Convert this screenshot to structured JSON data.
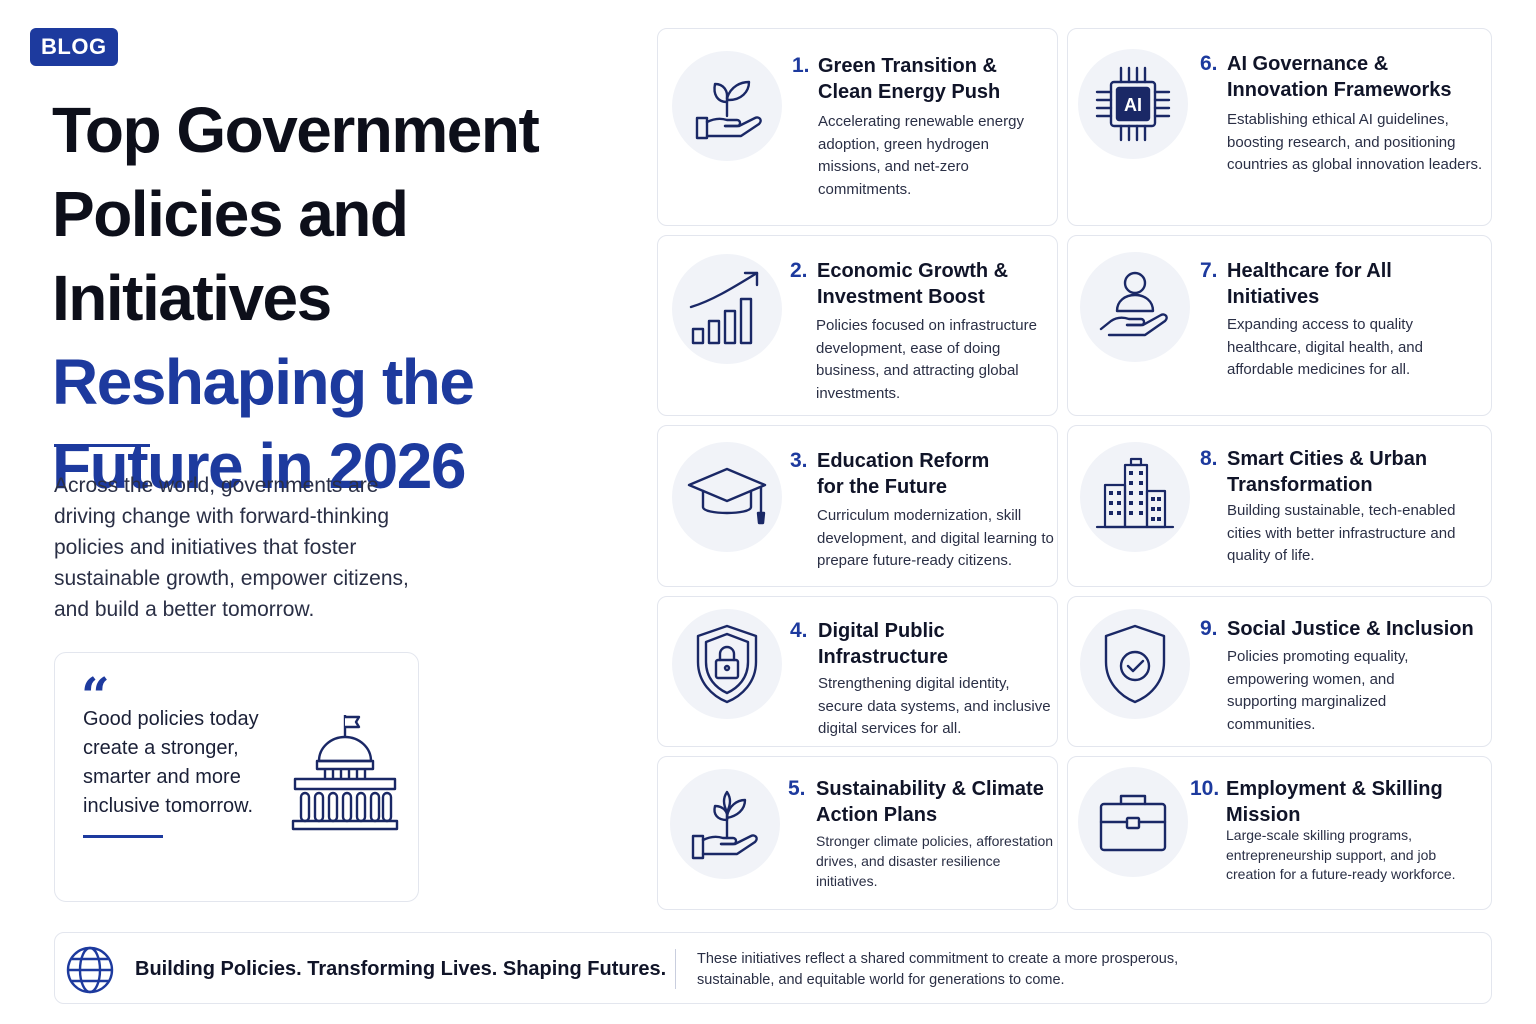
{
  "badge": "BLOG",
  "title": {
    "line1": "Top Government",
    "line2": "Policies and Initiatives",
    "line3": "Reshaping the",
    "line4": "Future in 2026"
  },
  "intro": "Across the world, governments are driving change with forward-thinking policies and initiatives that foster sustainable growth, empower citizens, and build a better tomorrow.",
  "quote": {
    "mark": "“",
    "text": "Good policies today create a stronger, smarter and more inclusive tomorrow.",
    "icon": "capitol-building-icon"
  },
  "policies": [
    {
      "number": "1.",
      "title": "Green Transition & Clean Energy Push",
      "description": "Accelerating renewable energy adoption, green hydrogen missions, and net-zero commitments.",
      "icon": "hand-sprout-icon"
    },
    {
      "number": "2.",
      "title": "Economic Growth & Investment Boost",
      "description": "Policies focused on infrastructure development, ease of doing business, and attracting global investments.",
      "icon": "growth-chart-icon"
    },
    {
      "number": "3.",
      "title": "Education Reform for the Future",
      "description": "Curriculum modernization, skill development, and digital learning to prepare future-ready citizens.",
      "icon": "graduation-cap-icon"
    },
    {
      "number": "4.",
      "title": "Digital Public Infrastructure",
      "description": "Strengthening digital identity, secure data systems, and inclusive digital services for all.",
      "icon": "shield-lock-icon"
    },
    {
      "number": "5.",
      "title": "Sustainability & Climate Action Plans",
      "description": "Stronger climate policies, afforestation drives, and disaster resilience initiatives.",
      "icon": "hand-plant-icon"
    },
    {
      "number": "6.",
      "title": "AI Governance & Innovation Frameworks",
      "description": "Establishing ethical AI guidelines, boosting research, and positioning countries as global innovation leaders.",
      "icon": "ai-chip-icon",
      "icon_text": "AI"
    },
    {
      "number": "7.",
      "title": "Healthcare for All Initiatives",
      "description": "Expanding access to quality healthcare, digital health, and affordable medicines for all.",
      "icon": "hand-person-icon"
    },
    {
      "number": "8.",
      "title": "Smart Cities & Urban Transformation",
      "description": "Building sustainable, tech-enabled cities with better infrastructure and quality of life.",
      "icon": "city-buildings-icon"
    },
    {
      "number": "9.",
      "title": "Social Justice & Inclusion",
      "description": "Policies promoting equality, empowering women, and supporting marginalized communities.",
      "icon": "shield-check-icon"
    },
    {
      "number": "10.",
      "title": "Employment & Skilling Mission",
      "description": "Large-scale skilling programs, entrepreneurship support, and job creation for a future-ready workforce.",
      "icon": "briefcase-icon"
    }
  ],
  "footer": {
    "tagline": "Building Policies. Transforming Lives. Shaping Futures.",
    "description": "These initiatives reflect a shared commitment to create a more prosperous, sustainable, and equitable world for generations to come.",
    "icon": "globe-icon"
  },
  "colors": {
    "accent": "#1d3a9e",
    "text": "#0d0f1a",
    "icon_bg": "#f1f3f8",
    "border": "#e3e6ee"
  }
}
